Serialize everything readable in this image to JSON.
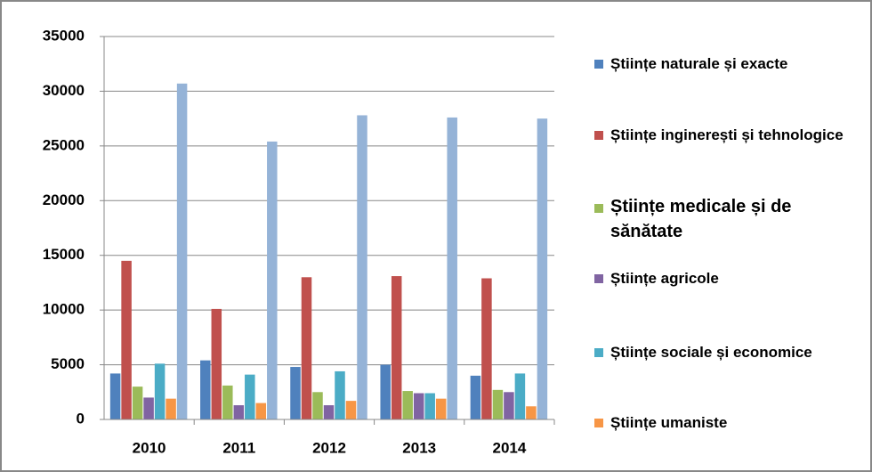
{
  "chart_data": {
    "type": "bar",
    "categories": [
      "2010",
      "2011",
      "2012",
      "2013",
      "2014"
    ],
    "series": [
      {
        "name": "Științe naturale și exacte",
        "color": "#4f81bd",
        "values": [
          4200,
          5400,
          4800,
          5000,
          4000
        ]
      },
      {
        "name": "Științe inginerești și tehnologice",
        "color": "#c0504d",
        "values": [
          14500,
          10100,
          13000,
          13100,
          12900
        ]
      },
      {
        "name": "Științe medicale și de sănătate",
        "color": "#9bbb59",
        "values": [
          3000,
          3100,
          2500,
          2600,
          2700
        ]
      },
      {
        "name": "Științe agricole",
        "color": "#8064a2",
        "values": [
          2000,
          1300,
          1300,
          2400,
          2500
        ]
      },
      {
        "name": "Științe sociale și economice",
        "color": "#4bacc6",
        "values": [
          5100,
          4100,
          4400,
          2400,
          4200
        ]
      },
      {
        "name": "Științe umaniste",
        "color": "#f79646",
        "values": [
          1900,
          1500,
          1700,
          1900,
          1200
        ]
      },
      {
        "color": "#95b3d7",
        "values": [
          30700,
          25400,
          27800,
          27600,
          27500
        ]
      }
    ],
    "ylim": [
      0,
      35000
    ],
    "yticks": [
      0,
      5000,
      10000,
      15000,
      20000,
      25000,
      30000,
      35000
    ],
    "grid": true,
    "legend": "right"
  }
}
